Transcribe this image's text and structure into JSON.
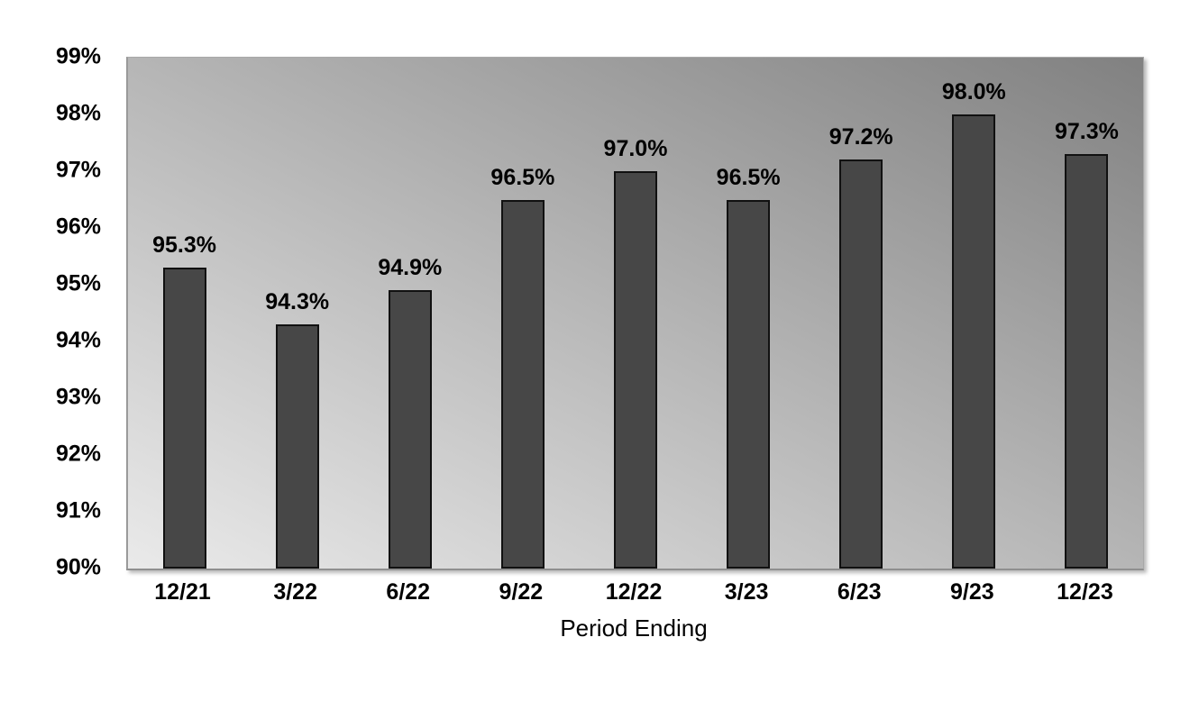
{
  "page": {
    "background": "#ffffff"
  },
  "chart_data": {
    "type": "bar",
    "title": "",
    "categories": [
      "12/21",
      "3/22",
      "6/22",
      "9/22",
      "12/22",
      "3/23",
      "6/23",
      "9/23",
      "12/23"
    ],
    "values": [
      95.3,
      94.3,
      94.9,
      96.5,
      97.0,
      96.5,
      97.2,
      98.0,
      97.3
    ],
    "data_labels": [
      "95.3%",
      "94.3%",
      "94.9%",
      "96.5%",
      "97.0%",
      "96.5%",
      "97.2%",
      "98.0%",
      "97.3%"
    ],
    "xlabel": "Period Ending",
    "ylabel": "",
    "ylim": [
      90,
      99
    ],
    "ytick_step": 1,
    "ytick_labels_top_to_bottom": [
      "99%",
      "98%",
      "97%",
      "96%",
      "95%",
      "94%",
      "93%",
      "92%",
      "91%",
      "90%"
    ],
    "grid": false,
    "legend": false,
    "layout": {
      "legend_position": "none",
      "data_label_position": "above-bar"
    },
    "colors": {
      "bar_fill": "#474747",
      "bar_border": "#111111",
      "plot_gradient_bottom_left": "#eaeaea",
      "plot_gradient_top_right": "#818181",
      "axis_line": "#8f8f8f",
      "text": "#000000",
      "canvas_bg": "#ffffff"
    }
  }
}
